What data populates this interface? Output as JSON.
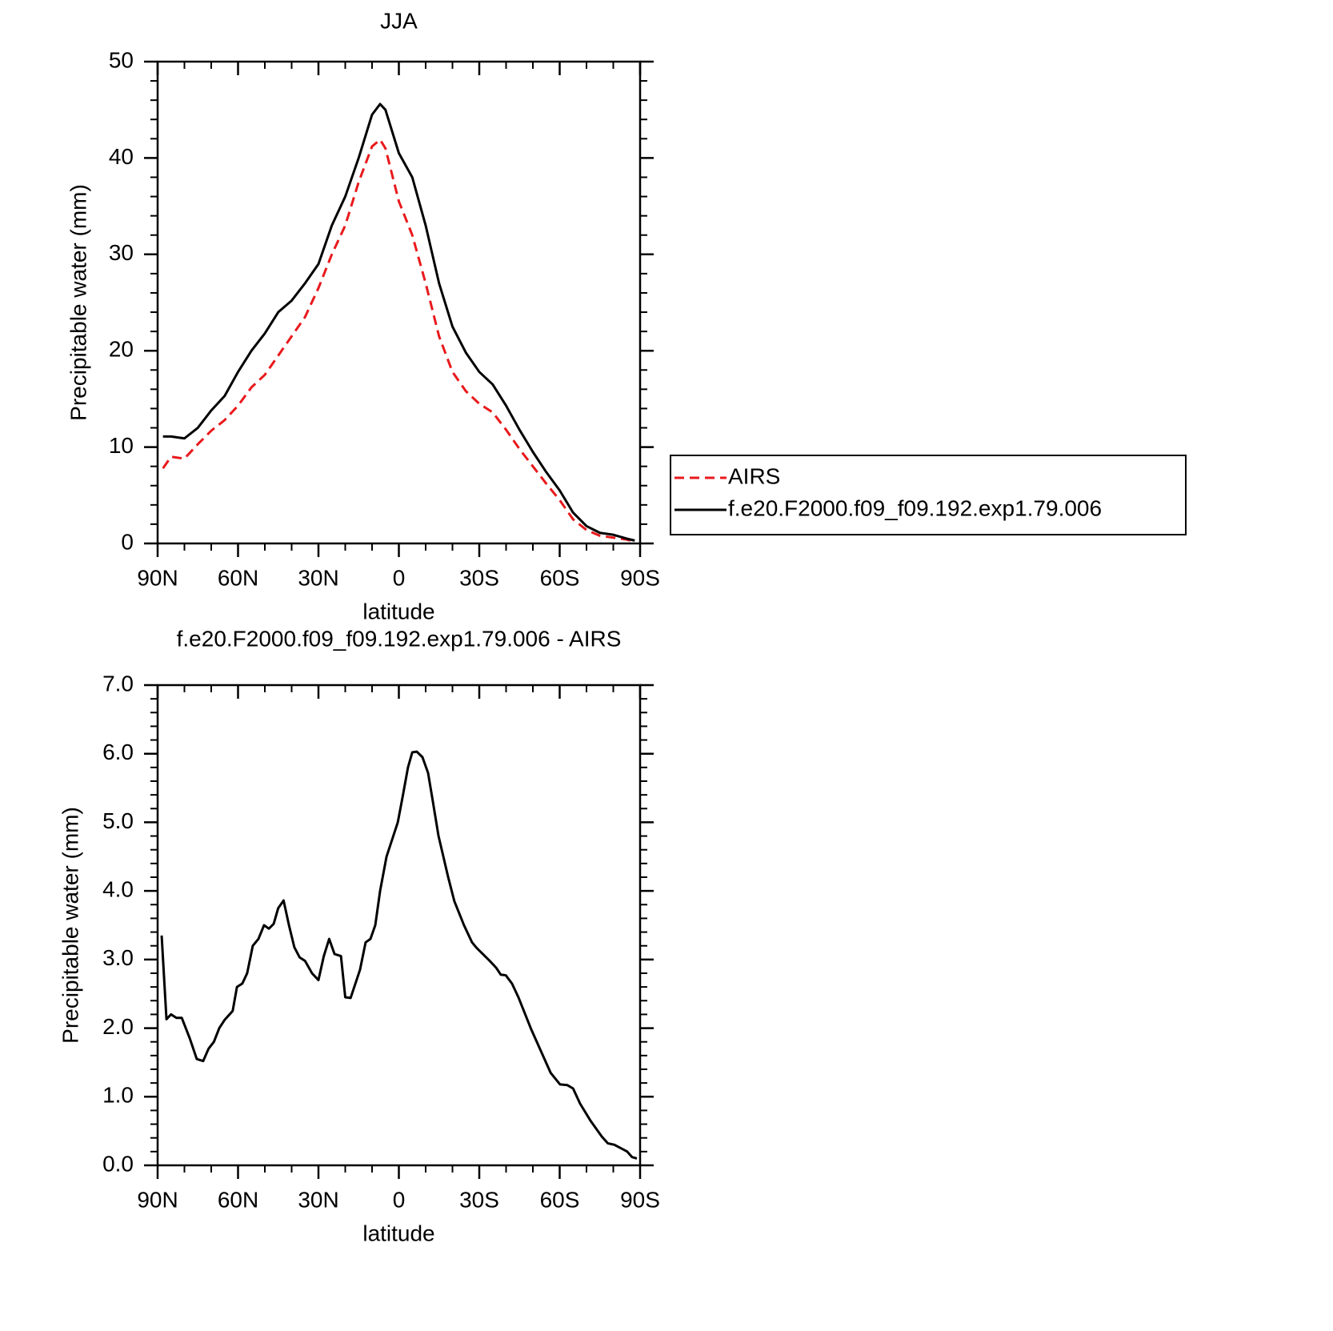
{
  "chart_data": [
    {
      "type": "line",
      "title": "JJA",
      "xlabel": "latitude",
      "ylabel": "Precipitable water (mm)",
      "x": [
        88,
        85,
        80,
        75,
        70,
        65,
        60,
        55,
        50,
        45,
        40,
        35,
        30,
        25,
        20,
        15,
        10,
        7,
        5,
        0,
        -5,
        -10,
        -15,
        -20,
        -25,
        -30,
        -35,
        -40,
        -45,
        -50,
        -55,
        -60,
        -65,
        -70,
        -75,
        -80,
        -85,
        -88
      ],
      "series": [
        {
          "name": "AIRS",
          "color": "#e8191c",
          "line_style": "dashed",
          "values": [
            7.8,
            9.0,
            8.8,
            10.3,
            11.7,
            12.8,
            14.3,
            16.2,
            17.5,
            19.5,
            21.5,
            23.5,
            26.5,
            30,
            33,
            37.5,
            41.2,
            41.9,
            41,
            35.5,
            32,
            27,
            21.5,
            17.8,
            15.8,
            14.5,
            13.6,
            11.8,
            9.8,
            8,
            6.2,
            4.5,
            2.5,
            1.4,
            0.8,
            0.6,
            0.4,
            0.2
          ]
        },
        {
          "name": "f.e20.F2000.f09_f09.192.exp1.79.006",
          "color": "#000000",
          "line_style": "solid",
          "values": [
            11.1,
            11.1,
            10.9,
            12,
            13.8,
            15.3,
            17.8,
            20.0,
            21.8,
            24.0,
            25.2,
            27.0,
            29,
            33,
            36,
            40,
            44.5,
            45.6,
            45,
            40.5,
            38,
            33,
            27,
            22.5,
            19.8,
            17.8,
            16.5,
            14.3,
            11.8,
            9.5,
            7.4,
            5.5,
            3.2,
            1.8,
            1.1,
            0.9,
            0.5,
            0.3
          ]
        }
      ],
      "xlim": [
        90,
        -90
      ],
      "xticks": [
        {
          "value": 90,
          "label": "90N"
        },
        {
          "value": 60,
          "label": "60N"
        },
        {
          "value": 30,
          "label": "30N"
        },
        0,
        {
          "value": -30,
          "label": "30S"
        },
        {
          "value": -60,
          "label": "60S"
        },
        {
          "value": -90,
          "label": "90S"
        }
      ],
      "ylim": [
        0,
        50
      ],
      "yticks": [
        0,
        10,
        20,
        30,
        40,
        50
      ],
      "legend": "right"
    },
    {
      "type": "line",
      "title": "f.e20.F2000.f09_f09.192.exp1.79.006 - AIRS",
      "xlabel": "latitude",
      "ylabel": "Precipitable water (mm)",
      "x": [
        88.5,
        86.7,
        85,
        83,
        81,
        78,
        75.4,
        73,
        71,
        69,
        67,
        65,
        62,
        60.4,
        58.4,
        56.6,
        54.5,
        52.4,
        50.3,
        48.5,
        46.7,
        45,
        43,
        41,
        39,
        37,
        35,
        32.4,
        30,
        28,
        26,
        24,
        21.6,
        20,
        18,
        14.5,
        12.4,
        10.6,
        8.8,
        7,
        4.6,
        0.4,
        -1.3,
        -3.4,
        -5,
        -6.7,
        -8.8,
        -10.9,
        -12.7,
        -14.8,
        -18.4,
        -20.7,
        -24.3,
        -27.3,
        -29,
        -33.9,
        -36.3,
        -38,
        -39.9,
        -42.2,
        -44.6,
        -49.4,
        -56.6,
        -60.1,
        -62.8,
        -65,
        -67.6,
        -71.5,
        -75.7,
        -78,
        -80.4,
        -82.8,
        -85.2,
        -87,
        -88.8
      ],
      "values": [
        3.35,
        2.13,
        2.2,
        2.15,
        2.15,
        1.85,
        1.55,
        1.52,
        1.7,
        1.8,
        2.0,
        2.12,
        2.25,
        2.6,
        2.65,
        2.8,
        3.2,
        3.3,
        3.5,
        3.45,
        3.52,
        3.75,
        3.86,
        3.5,
        3.18,
        3.03,
        2.98,
        2.8,
        2.7,
        3.05,
        3.3,
        3.08,
        3.05,
        2.45,
        2.44,
        2.85,
        3.25,
        3.3,
        3.5,
        4.0,
        4.5,
        5.0,
        5.35,
        5.8,
        6.02,
        6.03,
        5.95,
        5.72,
        5.3,
        4.8,
        4.2,
        3.85,
        3.5,
        3.25,
        3.17,
        2.98,
        2.88,
        2.78,
        2.77,
        2.65,
        2.45,
        1.98,
        1.35,
        1.18,
        1.17,
        1.12,
        0.9,
        0.65,
        0.42,
        0.32,
        0.3,
        0.25,
        0.2,
        0.12,
        0.1
      ],
      "color": "#000000",
      "xlim": [
        90,
        -90
      ],
      "xticks": [
        {
          "value": 90,
          "label": "90N"
        },
        {
          "value": 60,
          "label": "60N"
        },
        {
          "value": 30,
          "label": "30N"
        },
        0,
        {
          "value": -30,
          "label": "30S"
        },
        {
          "value": -60,
          "label": "60S"
        },
        {
          "value": -90,
          "label": "90S"
        }
      ],
      "ylim": [
        0,
        7
      ],
      "yticks": [
        {
          "value": 0,
          "label": "0.0"
        },
        {
          "value": 1,
          "label": "1.0"
        },
        {
          "value": 2,
          "label": "2.0"
        },
        {
          "value": 3,
          "label": "3.0"
        },
        {
          "value": 4,
          "label": "4.0"
        },
        {
          "value": 5,
          "label": "5.0"
        },
        {
          "value": 6,
          "label": "6.0"
        },
        {
          "value": 7,
          "label": "7.0"
        }
      ]
    }
  ]
}
